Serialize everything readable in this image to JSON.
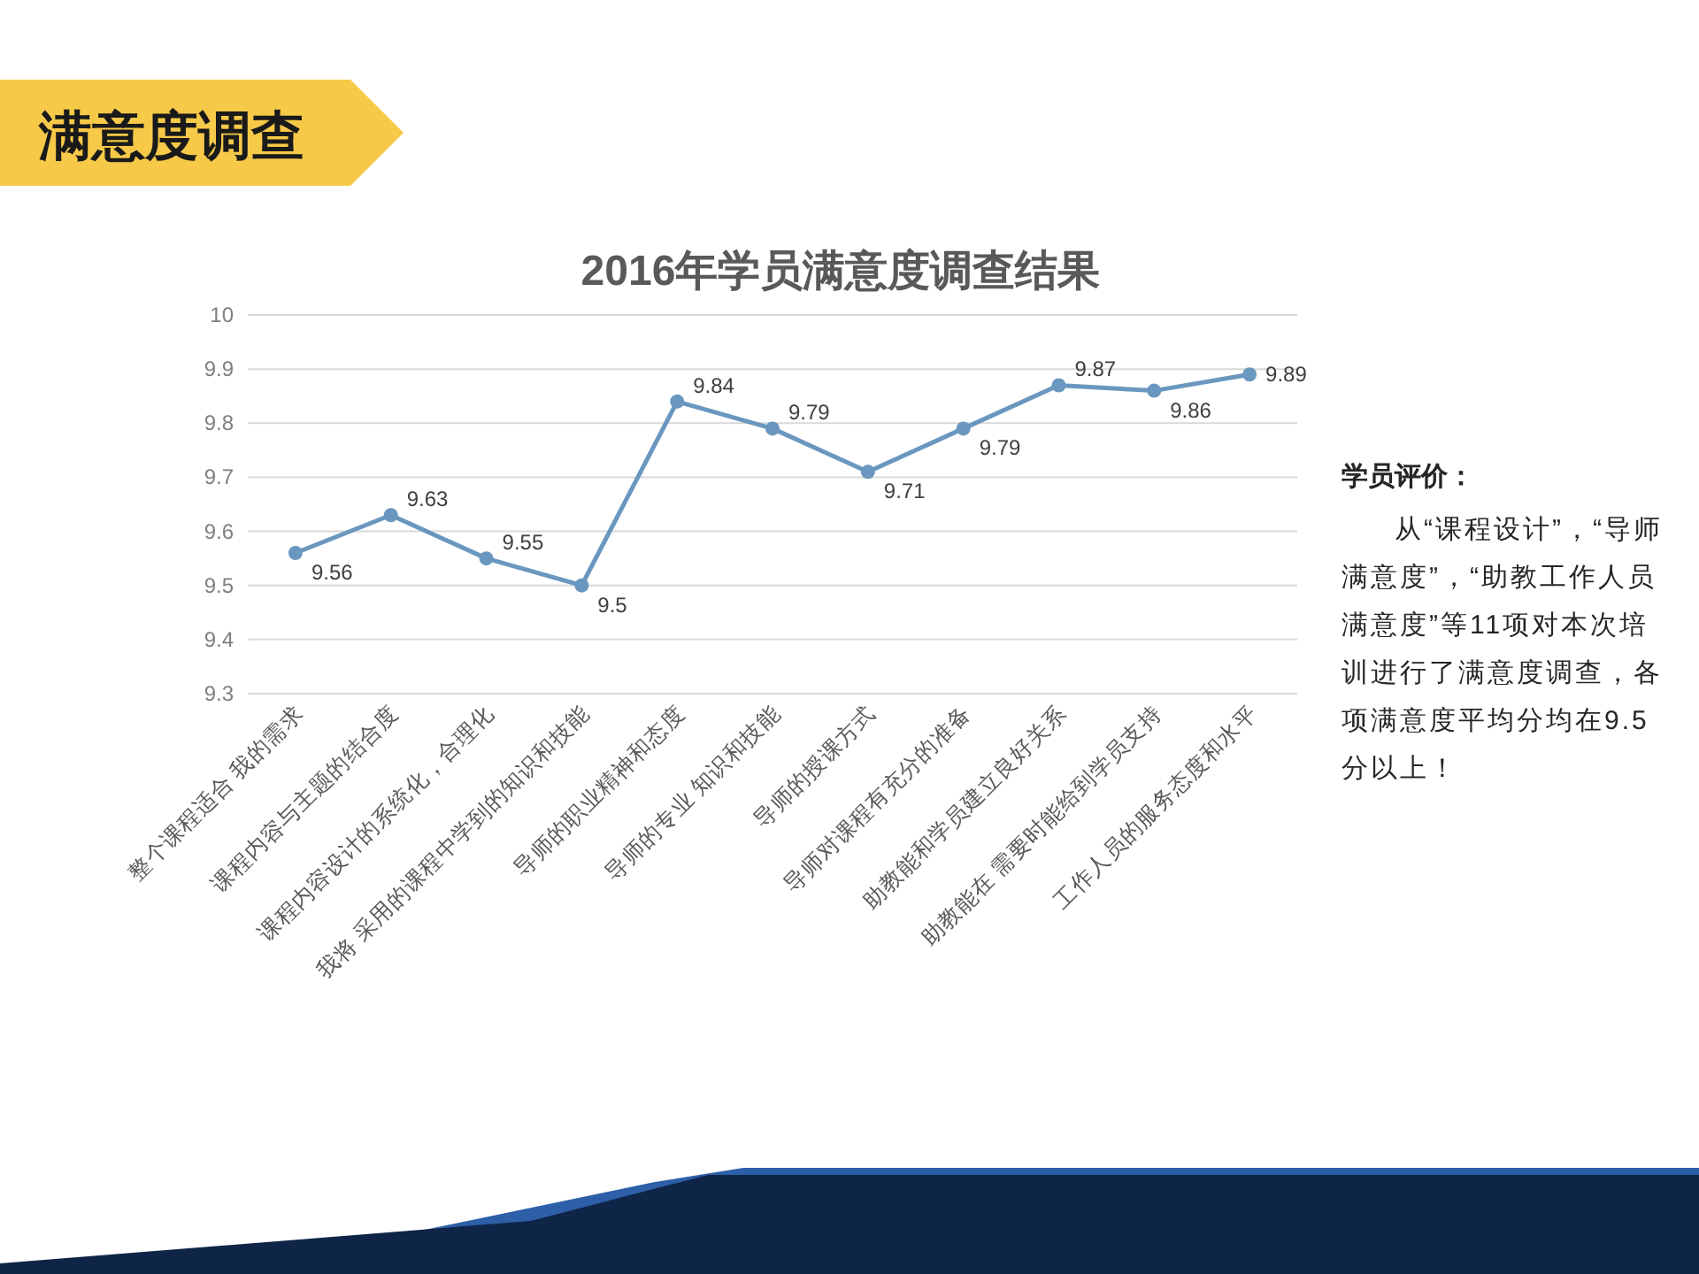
{
  "chart_data": {
    "type": "line",
    "title": "2016年学员满意度调查结果",
    "categories": [
      "整个课程适合 我的需求",
      "课程内容与主题的结合度",
      "课程内容设计的系统化，合理化",
      "我将 采用的课程中学到的知识和技能",
      "导师的职业精神和态度",
      "导师的专业 知识和技能",
      "导师的授课方式",
      "导师对课程有充分的准备",
      "助教能和学员建立良好关系",
      "助教能在 需要时能给到学员支持",
      "工作人员的服务态度和水平"
    ],
    "values": [
      9.56,
      9.63,
      9.55,
      9.5,
      9.84,
      9.79,
      9.71,
      9.79,
      9.87,
      9.86,
      9.89
    ],
    "color": "#6a97bf",
    "marker": "circle",
    "line_style": "solid",
    "data_labels": true,
    "ylim": [
      9.3,
      10
    ],
    "yticks": [
      9.3,
      9.4,
      9.5,
      9.6,
      9.7,
      9.8,
      9.9,
      10
    ],
    "grid": "y",
    "annotations": [
      "满意度调查",
      "学员评价：",
      "从“课程设计”，“导师满意度”，“助教工作人员满意度”等11项对本次培训进行了满意度调查，各项满意度平均分均在9.5分以上！"
    ]
  }
}
